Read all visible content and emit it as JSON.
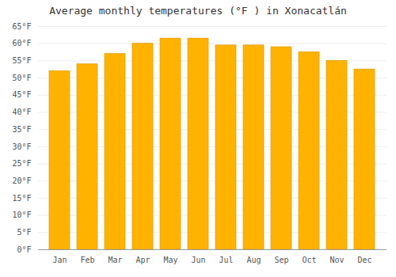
{
  "chart_data": {
    "type": "bar",
    "title": "Average monthly temperatures (°F ) in Xonacatlán",
    "categories": [
      "Jan",
      "Feb",
      "Mar",
      "Apr",
      "May",
      "Jun",
      "Jul",
      "Aug",
      "Sep",
      "Oct",
      "Nov",
      "Dec"
    ],
    "values": [
      52,
      54,
      57,
      60,
      61.5,
      61.5,
      59.5,
      59.5,
      59,
      57.5,
      55,
      52.5
    ],
    "color": "#FFB300",
    "ylim": [
      0,
      65
    ],
    "yticks": [
      {
        "value": 0,
        "label": "0°F"
      },
      {
        "value": 5,
        "label": "5°F"
      },
      {
        "value": 10,
        "label": "10°F"
      },
      {
        "value": 15,
        "label": "15°F"
      },
      {
        "value": 20,
        "label": "20°F"
      },
      {
        "value": 25,
        "label": "25°F"
      },
      {
        "value": 30,
        "label": "30°F"
      },
      {
        "value": 35,
        "label": "35°F"
      },
      {
        "value": 40,
        "label": "40°F"
      },
      {
        "value": 45,
        "label": "45°F"
      },
      {
        "value": 50,
        "label": "50°F"
      },
      {
        "value": 55,
        "label": "55°F"
      },
      {
        "value": 60,
        "label": "60°F"
      },
      {
        "value": 65,
        "label": "65°F"
      }
    ],
    "grid": true
  }
}
